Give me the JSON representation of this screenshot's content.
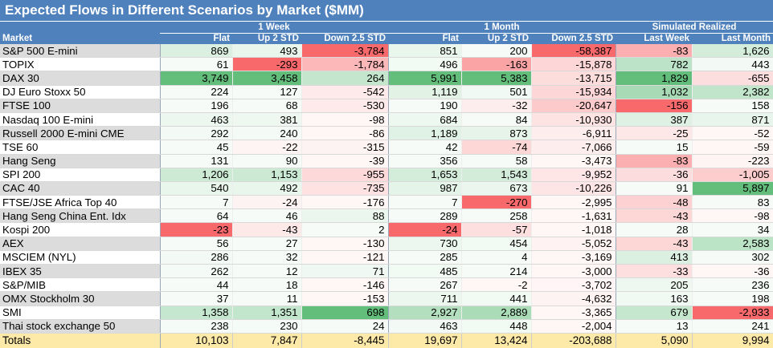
{
  "title": "Expected Flows in Different Scenarios by Market ($MM)",
  "groups": {
    "week": "1 Week",
    "month": "1 Month",
    "realized": "Simulated Realized"
  },
  "colors": {
    "header": "#4f81bd",
    "positive": "#63be7b",
    "negative": "#f8696b",
    "totals": "#fde9a8"
  },
  "chart_data": {
    "type": "table",
    "columns": [
      "Market",
      "Flat",
      "Up 2 STD",
      "Down 2.5 STD",
      "Flat",
      "Up 2 STD",
      "Down 2.5 STD",
      "Last Week",
      "Last Month"
    ],
    "rows": [
      {
        "market": "S&P 500 E-mini",
        "values": [
          869,
          493,
          -3784,
          851,
          200,
          -58387,
          -83,
          1626
        ]
      },
      {
        "market": "TOPIX",
        "values": [
          61,
          -293,
          -1784,
          496,
          -163,
          -15878,
          782,
          443
        ]
      },
      {
        "market": "DAX 30",
        "values": [
          3749,
          3458,
          264,
          5991,
          5383,
          -13715,
          1829,
          -655
        ]
      },
      {
        "market": "DJ Euro Stoxx 50",
        "values": [
          224,
          127,
          -542,
          1119,
          501,
          -15934,
          1032,
          2382
        ]
      },
      {
        "market": "FTSE 100",
        "values": [
          196,
          68,
          -530,
          190,
          -32,
          -20647,
          -156,
          158
        ]
      },
      {
        "market": "Nasdaq 100 E-mini",
        "values": [
          463,
          381,
          -98,
          684,
          84,
          -10930,
          387,
          871
        ]
      },
      {
        "market": "Russell 2000 E-mini CME",
        "values": [
          292,
          240,
          -86,
          1189,
          873,
          -6911,
          -25,
          -52
        ]
      },
      {
        "market": "TSE 60",
        "values": [
          45,
          -22,
          -315,
          42,
          -74,
          -7066,
          15,
          -59
        ]
      },
      {
        "market": "Hang Seng",
        "values": [
          131,
          90,
          -39,
          356,
          58,
          -3473,
          -83,
          -223
        ]
      },
      {
        "market": "SPI 200",
        "values": [
          1206,
          1153,
          -955,
          1653,
          1543,
          -9952,
          -36,
          -1005
        ]
      },
      {
        "market": "CAC 40",
        "values": [
          540,
          492,
          -735,
          987,
          673,
          -10226,
          91,
          5897
        ]
      },
      {
        "market": "FTSE/JSE Africa Top 40",
        "values": [
          7,
          -24,
          -176,
          7,
          -270,
          -2995,
          -48,
          83
        ]
      },
      {
        "market": "Hang Seng China Ent. Idx",
        "values": [
          64,
          46,
          88,
          289,
          258,
          -1631,
          -43,
          -98
        ]
      },
      {
        "market": "Kospi 200",
        "values": [
          -23,
          -43,
          2,
          -24,
          -57,
          -1018,
          28,
          34
        ]
      },
      {
        "market": "AEX",
        "values": [
          56,
          27,
          -130,
          730,
          454,
          -5052,
          -43,
          2583
        ]
      },
      {
        "market": "MSCIEM (NYL)",
        "values": [
          286,
          32,
          -121,
          285,
          4,
          -3169,
          413,
          302
        ]
      },
      {
        "market": "IBEX 35",
        "values": [
          262,
          12,
          71,
          485,
          214,
          -3000,
          -33,
          -36
        ]
      },
      {
        "market": "S&P/MIB",
        "values": [
          44,
          18,
          -146,
          267,
          -2,
          -3702,
          205,
          236
        ]
      },
      {
        "market": "OMX Stockholm 30",
        "values": [
          37,
          11,
          -153,
          711,
          441,
          -4632,
          163,
          198
        ]
      },
      {
        "market": "SMI",
        "values": [
          1358,
          1351,
          698,
          2927,
          2889,
          -3365,
          679,
          -2933
        ]
      },
      {
        "market": "Thai stock exchange 50",
        "values": [
          238,
          230,
          24,
          463,
          448,
          -2004,
          13,
          241
        ]
      }
    ],
    "totals": {
      "label": "Totals",
      "values": [
        10103,
        7847,
        -8445,
        19697,
        13424,
        -203688,
        5090,
        9994
      ]
    }
  }
}
